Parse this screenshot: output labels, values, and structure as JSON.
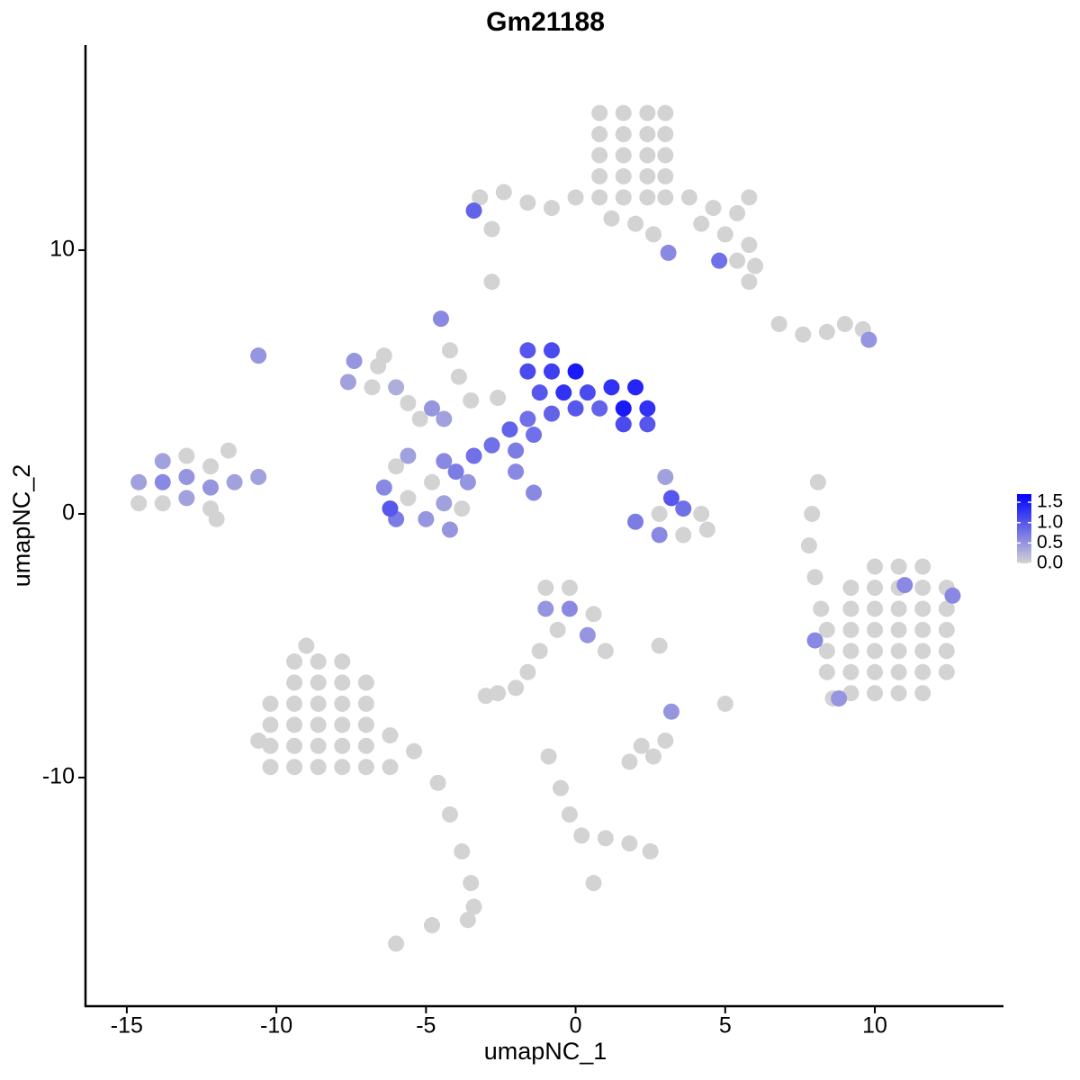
{
  "chart_data": {
    "type": "scatter",
    "title": "Gm21188",
    "x_label": "umapNC_1",
    "y_label": "umapNC_2",
    "xlim": [
      -16.38,
      14.3
    ],
    "ylim": [
      -18.67,
      17.78
    ],
    "xticks": [
      -15,
      -10,
      -5,
      0,
      5,
      10
    ],
    "yticks": [
      -10,
      0,
      10
    ],
    "color_low": "#d3d3d3",
    "color_high": "#0000ff",
    "colorbar_lim": [
      0,
      1.7
    ],
    "colorbar_ticks": [
      {
        "value": 0,
        "label": "0.0"
      },
      0.5,
      {
        "value": 1,
        "label": "1.0"
      },
      1.5
    ],
    "points": [
      {
        "x": 0.8,
        "y": 15.2,
        "expression": 0
      },
      {
        "x": 1.6,
        "y": 15.2,
        "expression": 0
      },
      {
        "x": 2.4,
        "y": 15.2,
        "expression": 0
      },
      {
        "x": 3.0,
        "y": 15.2,
        "expression": 0
      },
      {
        "x": 0.8,
        "y": 14.4,
        "expression": 0
      },
      {
        "x": 1.6,
        "y": 14.4,
        "expression": 0
      },
      {
        "x": 2.4,
        "y": 14.4,
        "expression": 0
      },
      {
        "x": 3.0,
        "y": 14.4,
        "expression": 0
      },
      {
        "x": 0.8,
        "y": 13.6,
        "expression": 0
      },
      {
        "x": 1.6,
        "y": 13.6,
        "expression": 0
      },
      {
        "x": 2.4,
        "y": 13.6,
        "expression": 0
      },
      {
        "x": 3.0,
        "y": 13.6,
        "expression": 0
      },
      {
        "x": 0.8,
        "y": 12.8,
        "expression": 0
      },
      {
        "x": 1.6,
        "y": 12.8,
        "expression": 0
      },
      {
        "x": 2.4,
        "y": 12.8,
        "expression": 0
      },
      {
        "x": 3.0,
        "y": 12.8,
        "expression": 0
      },
      {
        "x": 0.8,
        "y": 12.0,
        "expression": 0
      },
      {
        "x": 1.6,
        "y": 12.0,
        "expression": 0
      },
      {
        "x": 2.4,
        "y": 12.0,
        "expression": 0
      },
      {
        "x": 3.0,
        "y": 12.0,
        "expression": 0
      },
      {
        "x": 3.8,
        "y": 12.0,
        "expression": 0
      },
      {
        "x": 4.6,
        "y": 11.6,
        "expression": 0
      },
      {
        "x": 5.4,
        "y": 11.4,
        "expression": 0
      },
      {
        "x": 5.8,
        "y": 12.0,
        "expression": 0
      },
      {
        "x": 4.2,
        "y": 11.0,
        "expression": 0
      },
      {
        "x": 5.0,
        "y": 10.6,
        "expression": 0
      },
      {
        "x": 5.8,
        "y": 10.2,
        "expression": 0
      },
      {
        "x": 6.0,
        "y": 9.4,
        "expression": 0
      },
      {
        "x": 5.4,
        "y": 9.6,
        "expression": 0
      },
      {
        "x": 5.8,
        "y": 8.8,
        "expression": 0
      },
      {
        "x": 4.8,
        "y": 9.6,
        "expression": 0.8
      },
      {
        "x": 3.1,
        "y": 9.9,
        "expression": 0.6
      },
      {
        "x": 0.0,
        "y": 12.0,
        "expression": 0
      },
      {
        "x": -0.8,
        "y": 11.6,
        "expression": 0
      },
      {
        "x": -1.6,
        "y": 11.8,
        "expression": 0
      },
      {
        "x": -2.4,
        "y": 12.2,
        "expression": 0
      },
      {
        "x": -3.2,
        "y": 12.0,
        "expression": 0
      },
      {
        "x": -3.4,
        "y": 11.5,
        "expression": 0.9
      },
      {
        "x": -2.8,
        "y": 10.8,
        "expression": 0
      },
      {
        "x": -2.8,
        "y": 8.8,
        "expression": 0
      },
      {
        "x": 1.2,
        "y": 11.2,
        "expression": 0
      },
      {
        "x": 2.0,
        "y": 11.0,
        "expression": 0
      },
      {
        "x": 2.6,
        "y": 10.6,
        "expression": 0
      },
      {
        "x": 6.8,
        "y": 7.2,
        "expression": 0
      },
      {
        "x": 7.6,
        "y": 6.8,
        "expression": 0
      },
      {
        "x": 8.4,
        "y": 6.9,
        "expression": 0
      },
      {
        "x": 9.0,
        "y": 7.2,
        "expression": 0
      },
      {
        "x": 9.6,
        "y": 7.0,
        "expression": 0
      },
      {
        "x": 9.8,
        "y": 6.6,
        "expression": 0.5
      },
      {
        "x": -1.6,
        "y": 6.2,
        "expression": 1.0
      },
      {
        "x": -0.8,
        "y": 6.2,
        "expression": 1.1
      },
      {
        "x": -1.6,
        "y": 5.4,
        "expression": 1.1
      },
      {
        "x": -0.8,
        "y": 5.4,
        "expression": 1.2
      },
      {
        "x": 0.0,
        "y": 5.4,
        "expression": 1.5
      },
      {
        "x": -1.2,
        "y": 4.6,
        "expression": 1.0
      },
      {
        "x": -0.4,
        "y": 4.6,
        "expression": 1.3
      },
      {
        "x": 0.4,
        "y": 4.6,
        "expression": 1.1
      },
      {
        "x": 1.2,
        "y": 4.8,
        "expression": 1.3
      },
      {
        "x": 2.0,
        "y": 4.8,
        "expression": 1.4
      },
      {
        "x": 1.6,
        "y": 4.0,
        "expression": 1.5
      },
      {
        "x": 2.4,
        "y": 4.0,
        "expression": 1.3
      },
      {
        "x": 0.8,
        "y": 4.0,
        "expression": 0.9
      },
      {
        "x": 0.0,
        "y": 4.0,
        "expression": 1.0
      },
      {
        "x": -0.8,
        "y": 3.8,
        "expression": 0.9
      },
      {
        "x": -1.6,
        "y": 3.6,
        "expression": 0.8
      },
      {
        "x": 2.4,
        "y": 3.4,
        "expression": 1.0
      },
      {
        "x": 1.6,
        "y": 3.4,
        "expression": 1.1
      },
      {
        "x": -2.2,
        "y": 3.2,
        "expression": 0.9
      },
      {
        "x": -2.8,
        "y": 2.6,
        "expression": 0.8
      },
      {
        "x": -3.4,
        "y": 2.2,
        "expression": 0.8
      },
      {
        "x": -4.0,
        "y": 1.6,
        "expression": 0.7
      },
      {
        "x": -2.0,
        "y": 2.4,
        "expression": 0.7
      },
      {
        "x": -1.4,
        "y": 3.0,
        "expression": 0.8
      },
      {
        "x": -2.0,
        "y": 1.6,
        "expression": 0.6
      },
      {
        "x": -1.4,
        "y": 0.8,
        "expression": 0.6
      },
      {
        "x": -4.5,
        "y": 7.4,
        "expression": 0.6
      },
      {
        "x": -4.2,
        "y": 6.2,
        "expression": 0
      },
      {
        "x": -3.9,
        "y": 5.2,
        "expression": 0
      },
      {
        "x": -3.5,
        "y": 4.3,
        "expression": 0
      },
      {
        "x": -2.6,
        "y": 4.4,
        "expression": 0
      },
      {
        "x": -7.4,
        "y": 5.8,
        "expression": 0.5
      },
      {
        "x": -6.6,
        "y": 5.6,
        "expression": 0
      },
      {
        "x": -7.6,
        "y": 5.0,
        "expression": 0.4
      },
      {
        "x": -6.8,
        "y": 4.8,
        "expression": 0
      },
      {
        "x": -6.0,
        "y": 4.8,
        "expression": 0.3
      },
      {
        "x": -5.6,
        "y": 4.2,
        "expression": 0
      },
      {
        "x": -4.8,
        "y": 4.0,
        "expression": 0.5
      },
      {
        "x": -5.2,
        "y": 3.6,
        "expression": 0
      },
      {
        "x": -4.4,
        "y": 3.6,
        "expression": 0.4
      },
      {
        "x": -6.4,
        "y": 6.0,
        "expression": 0
      },
      {
        "x": -6.4,
        "y": 1.0,
        "expression": 0.6
      },
      {
        "x": -6.0,
        "y": 1.8,
        "expression": 0
      },
      {
        "x": -5.6,
        "y": 0.6,
        "expression": 0
      },
      {
        "x": -5.0,
        "y": -0.2,
        "expression": 0.5
      },
      {
        "x": -6.0,
        "y": -0.2,
        "expression": 0.7
      },
      {
        "x": -4.4,
        "y": 0.4,
        "expression": 0.4
      },
      {
        "x": -4.8,
        "y": 1.2,
        "expression": 0
      },
      {
        "x": -4.4,
        "y": 2.0,
        "expression": 0.6
      },
      {
        "x": -3.6,
        "y": 1.2,
        "expression": 0.5
      },
      {
        "x": -3.8,
        "y": 0.2,
        "expression": 0
      },
      {
        "x": -5.6,
        "y": 2.2,
        "expression": 0.4
      },
      {
        "x": -4.2,
        "y": -0.6,
        "expression": 0.5
      },
      {
        "x": -6.2,
        "y": 0.2,
        "expression": 1.0
      },
      {
        "x": -14.6,
        "y": 1.2,
        "expression": 0.4
      },
      {
        "x": -14.6,
        "y": 0.4,
        "expression": 0
      },
      {
        "x": -13.8,
        "y": 2.0,
        "expression": 0.4
      },
      {
        "x": -13.8,
        "y": 1.2,
        "expression": 0.6
      },
      {
        "x": -13.8,
        "y": 0.4,
        "expression": 0
      },
      {
        "x": -13.0,
        "y": 2.2,
        "expression": 0
      },
      {
        "x": -13.0,
        "y": 1.4,
        "expression": 0.5
      },
      {
        "x": -13.0,
        "y": 0.6,
        "expression": 0.4
      },
      {
        "x": -12.2,
        "y": 1.8,
        "expression": 0
      },
      {
        "x": -12.2,
        "y": 1.0,
        "expression": 0.5
      },
      {
        "x": -12.2,
        "y": 0.2,
        "expression": 0
      },
      {
        "x": -11.6,
        "y": 2.4,
        "expression": 0
      },
      {
        "x": -11.4,
        "y": 1.2,
        "expression": 0.4
      },
      {
        "x": -10.6,
        "y": 1.4,
        "expression": 0.4
      },
      {
        "x": -12.0,
        "y": -0.2,
        "expression": 0
      },
      {
        "x": -10.6,
        "y": 6.0,
        "expression": 0.5
      },
      {
        "x": 3.0,
        "y": 1.4,
        "expression": 0.4
      },
      {
        "x": 3.2,
        "y": 0.6,
        "expression": 1.0
      },
      {
        "x": 3.6,
        "y": 0.2,
        "expression": 0.8
      },
      {
        "x": 2.8,
        "y": 0.0,
        "expression": 0
      },
      {
        "x": 4.2,
        "y": 0.0,
        "expression": 0
      },
      {
        "x": 3.6,
        "y": -0.8,
        "expression": 0
      },
      {
        "x": 2.8,
        "y": -0.8,
        "expression": 0.6
      },
      {
        "x": 2.0,
        "y": -0.3,
        "expression": 0.7
      },
      {
        "x": 4.4,
        "y": -0.6,
        "expression": 0
      },
      {
        "x": 8.1,
        "y": 1.2,
        "expression": 0
      },
      {
        "x": 7.9,
        "y": 0.0,
        "expression": 0
      },
      {
        "x": 7.8,
        "y": -1.2,
        "expression": 0
      },
      {
        "x": 8.0,
        "y": -2.4,
        "expression": 0
      },
      {
        "x": 8.2,
        "y": -3.6,
        "expression": 0
      },
      {
        "x": 10.0,
        "y": -2.0,
        "expression": 0
      },
      {
        "x": 10.8,
        "y": -2.0,
        "expression": 0
      },
      {
        "x": 11.6,
        "y": -2.0,
        "expression": 0
      },
      {
        "x": 9.2,
        "y": -2.8,
        "expression": 0
      },
      {
        "x": 10.0,
        "y": -2.8,
        "expression": 0
      },
      {
        "x": 10.8,
        "y": -2.8,
        "expression": 0
      },
      {
        "x": 11.6,
        "y": -2.8,
        "expression": 0
      },
      {
        "x": 12.4,
        "y": -2.8,
        "expression": 0
      },
      {
        "x": 9.2,
        "y": -3.6,
        "expression": 0
      },
      {
        "x": 10.0,
        "y": -3.6,
        "expression": 0
      },
      {
        "x": 10.8,
        "y": -3.6,
        "expression": 0
      },
      {
        "x": 11.6,
        "y": -3.6,
        "expression": 0
      },
      {
        "x": 12.4,
        "y": -3.6,
        "expression": 0
      },
      {
        "x": 9.2,
        "y": -4.4,
        "expression": 0
      },
      {
        "x": 10.0,
        "y": -4.4,
        "expression": 0
      },
      {
        "x": 10.8,
        "y": -4.4,
        "expression": 0
      },
      {
        "x": 11.6,
        "y": -4.4,
        "expression": 0
      },
      {
        "x": 12.4,
        "y": -4.4,
        "expression": 0
      },
      {
        "x": 9.2,
        "y": -5.2,
        "expression": 0
      },
      {
        "x": 10.0,
        "y": -5.2,
        "expression": 0
      },
      {
        "x": 10.8,
        "y": -5.2,
        "expression": 0
      },
      {
        "x": 11.6,
        "y": -5.2,
        "expression": 0
      },
      {
        "x": 12.4,
        "y": -5.2,
        "expression": 0
      },
      {
        "x": 9.2,
        "y": -6.0,
        "expression": 0
      },
      {
        "x": 10.0,
        "y": -6.0,
        "expression": 0
      },
      {
        "x": 10.8,
        "y": -6.0,
        "expression": 0
      },
      {
        "x": 11.6,
        "y": -6.0,
        "expression": 0
      },
      {
        "x": 12.4,
        "y": -6.0,
        "expression": 0
      },
      {
        "x": 9.2,
        "y": -6.8,
        "expression": 0
      },
      {
        "x": 10.0,
        "y": -6.8,
        "expression": 0
      },
      {
        "x": 10.8,
        "y": -6.8,
        "expression": 0
      },
      {
        "x": 11.6,
        "y": -6.8,
        "expression": 0
      },
      {
        "x": 8.4,
        "y": -4.4,
        "expression": 0
      },
      {
        "x": 8.4,
        "y": -5.2,
        "expression": 0
      },
      {
        "x": 8.4,
        "y": -6.0,
        "expression": 0
      },
      {
        "x": 8.6,
        "y": -7.0,
        "expression": 0
      },
      {
        "x": 11.0,
        "y": -2.7,
        "expression": 0.6
      },
      {
        "x": 12.6,
        "y": -3.1,
        "expression": 0.6
      },
      {
        "x": 8.0,
        "y": -4.8,
        "expression": 0.6
      },
      {
        "x": 8.8,
        "y": -7.0,
        "expression": 0.5
      },
      {
        "x": -9.0,
        "y": -5.0,
        "expression": 0
      },
      {
        "x": -9.4,
        "y": -5.6,
        "expression": 0
      },
      {
        "x": -8.6,
        "y": -5.6,
        "expression": 0
      },
      {
        "x": -7.8,
        "y": -5.6,
        "expression": 0
      },
      {
        "x": -9.4,
        "y": -6.4,
        "expression": 0
      },
      {
        "x": -8.6,
        "y": -6.4,
        "expression": 0
      },
      {
        "x": -7.8,
        "y": -6.4,
        "expression": 0
      },
      {
        "x": -7.0,
        "y": -6.4,
        "expression": 0
      },
      {
        "x": -10.2,
        "y": -7.2,
        "expression": 0
      },
      {
        "x": -9.4,
        "y": -7.2,
        "expression": 0
      },
      {
        "x": -8.6,
        "y": -7.2,
        "expression": 0
      },
      {
        "x": -7.8,
        "y": -7.2,
        "expression": 0
      },
      {
        "x": -7.0,
        "y": -7.2,
        "expression": 0
      },
      {
        "x": -10.2,
        "y": -8.0,
        "expression": 0
      },
      {
        "x": -9.4,
        "y": -8.0,
        "expression": 0
      },
      {
        "x": -8.6,
        "y": -8.0,
        "expression": 0
      },
      {
        "x": -7.8,
        "y": -8.0,
        "expression": 0
      },
      {
        "x": -7.0,
        "y": -8.0,
        "expression": 0
      },
      {
        "x": -10.2,
        "y": -8.8,
        "expression": 0
      },
      {
        "x": -9.4,
        "y": -8.8,
        "expression": 0
      },
      {
        "x": -8.6,
        "y": -8.8,
        "expression": 0
      },
      {
        "x": -7.8,
        "y": -8.8,
        "expression": 0
      },
      {
        "x": -7.0,
        "y": -8.8,
        "expression": 0
      },
      {
        "x": -10.2,
        "y": -9.6,
        "expression": 0
      },
      {
        "x": -9.4,
        "y": -9.6,
        "expression": 0
      },
      {
        "x": -8.6,
        "y": -9.6,
        "expression": 0
      },
      {
        "x": -7.8,
        "y": -9.6,
        "expression": 0
      },
      {
        "x": -7.0,
        "y": -9.6,
        "expression": 0
      },
      {
        "x": -6.2,
        "y": -8.4,
        "expression": 0
      },
      {
        "x": -5.4,
        "y": -9.0,
        "expression": 0
      },
      {
        "x": -4.6,
        "y": -10.2,
        "expression": 0
      },
      {
        "x": -6.2,
        "y": -9.6,
        "expression": 0
      },
      {
        "x": -10.6,
        "y": -8.6,
        "expression": 0
      },
      {
        "x": -4.2,
        "y": -11.4,
        "expression": 0
      },
      {
        "x": -3.8,
        "y": -12.8,
        "expression": 0
      },
      {
        "x": -3.5,
        "y": -14.0,
        "expression": 0
      },
      {
        "x": -3.4,
        "y": -14.9,
        "expression": 0
      },
      {
        "x": -3.6,
        "y": -15.4,
        "expression": 0
      },
      {
        "x": -6.0,
        "y": -16.3,
        "expression": 0
      },
      {
        "x": -4.8,
        "y": -15.6,
        "expression": 0
      },
      {
        "x": -1.0,
        "y": -2.8,
        "expression": 0
      },
      {
        "x": -0.2,
        "y": -2.8,
        "expression": 0
      },
      {
        "x": -1.0,
        "y": -3.6,
        "expression": 0.5
      },
      {
        "x": -0.2,
        "y": -3.6,
        "expression": 0.6
      },
      {
        "x": 0.6,
        "y": -3.8,
        "expression": 0
      },
      {
        "x": -0.6,
        "y": -4.4,
        "expression": 0
      },
      {
        "x": 0.4,
        "y": -4.6,
        "expression": 0.5
      },
      {
        "x": 1.0,
        "y": -5.2,
        "expression": 0
      },
      {
        "x": -1.2,
        "y": -5.2,
        "expression": 0
      },
      {
        "x": -1.6,
        "y": -6.0,
        "expression": 0
      },
      {
        "x": -2.0,
        "y": -6.6,
        "expression": 0
      },
      {
        "x": -2.6,
        "y": -6.8,
        "expression": 0
      },
      {
        "x": -3.0,
        "y": -6.9,
        "expression": 0
      },
      {
        "x": 2.8,
        "y": -5.0,
        "expression": 0
      },
      {
        "x": 5.0,
        "y": -7.2,
        "expression": 0
      },
      {
        "x": 3.2,
        "y": -7.5,
        "expression": 0.5
      },
      {
        "x": 1.8,
        "y": -9.4,
        "expression": 0
      },
      {
        "x": 2.6,
        "y": -9.2,
        "expression": 0
      },
      {
        "x": 3.0,
        "y": -8.6,
        "expression": 0
      },
      {
        "x": 2.2,
        "y": -8.8,
        "expression": 0
      },
      {
        "x": -0.9,
        "y": -9.2,
        "expression": 0
      },
      {
        "x": -0.5,
        "y": -10.4,
        "expression": 0
      },
      {
        "x": -0.2,
        "y": -11.4,
        "expression": 0
      },
      {
        "x": 0.2,
        "y": -12.2,
        "expression": 0
      },
      {
        "x": 1.0,
        "y": -12.3,
        "expression": 0
      },
      {
        "x": 1.8,
        "y": -12.5,
        "expression": 0
      },
      {
        "x": 2.5,
        "y": -12.8,
        "expression": 0
      },
      {
        "x": 0.6,
        "y": -14.0,
        "expression": 0
      }
    ]
  }
}
